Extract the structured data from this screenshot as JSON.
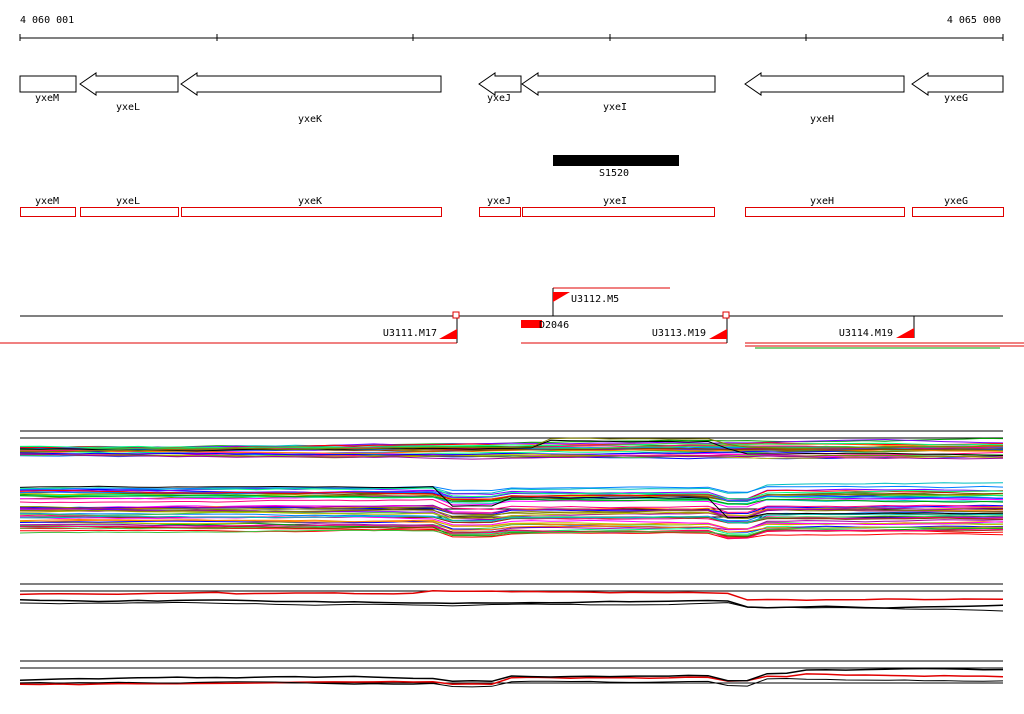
{
  "ruler": {
    "start_label": "4 060 001",
    "end_label": "4 065 000"
  },
  "genes": [
    {
      "name": "yxeM",
      "strand": "+"
    },
    {
      "name": "yxeL",
      "strand": "-"
    },
    {
      "name": "yxeK",
      "strand": "-"
    },
    {
      "name": "yxeJ",
      "strand": "-"
    },
    {
      "name": "yxeI",
      "strand": "-"
    },
    {
      "name": "yxeH",
      "strand": "-"
    },
    {
      "name": "yxeG",
      "strand": "-"
    }
  ],
  "feature": {
    "name": "S1520"
  },
  "cds": [
    "yxeM",
    "yxeL",
    "yxeK",
    "yxeJ",
    "yxeI",
    "yxeH",
    "yxeG"
  ],
  "transcripts": [
    {
      "name": "U3112.M5"
    },
    {
      "name": "U3111.M17"
    },
    {
      "name": "D2046"
    },
    {
      "name": "U3113.M19"
    },
    {
      "name": "U3114.M19"
    }
  ],
  "colors": {
    "cds_outline": "#e00000",
    "transcript_flag": "#ff0000",
    "feature_bar": "#000000",
    "highlight_line": "#e00000"
  }
}
